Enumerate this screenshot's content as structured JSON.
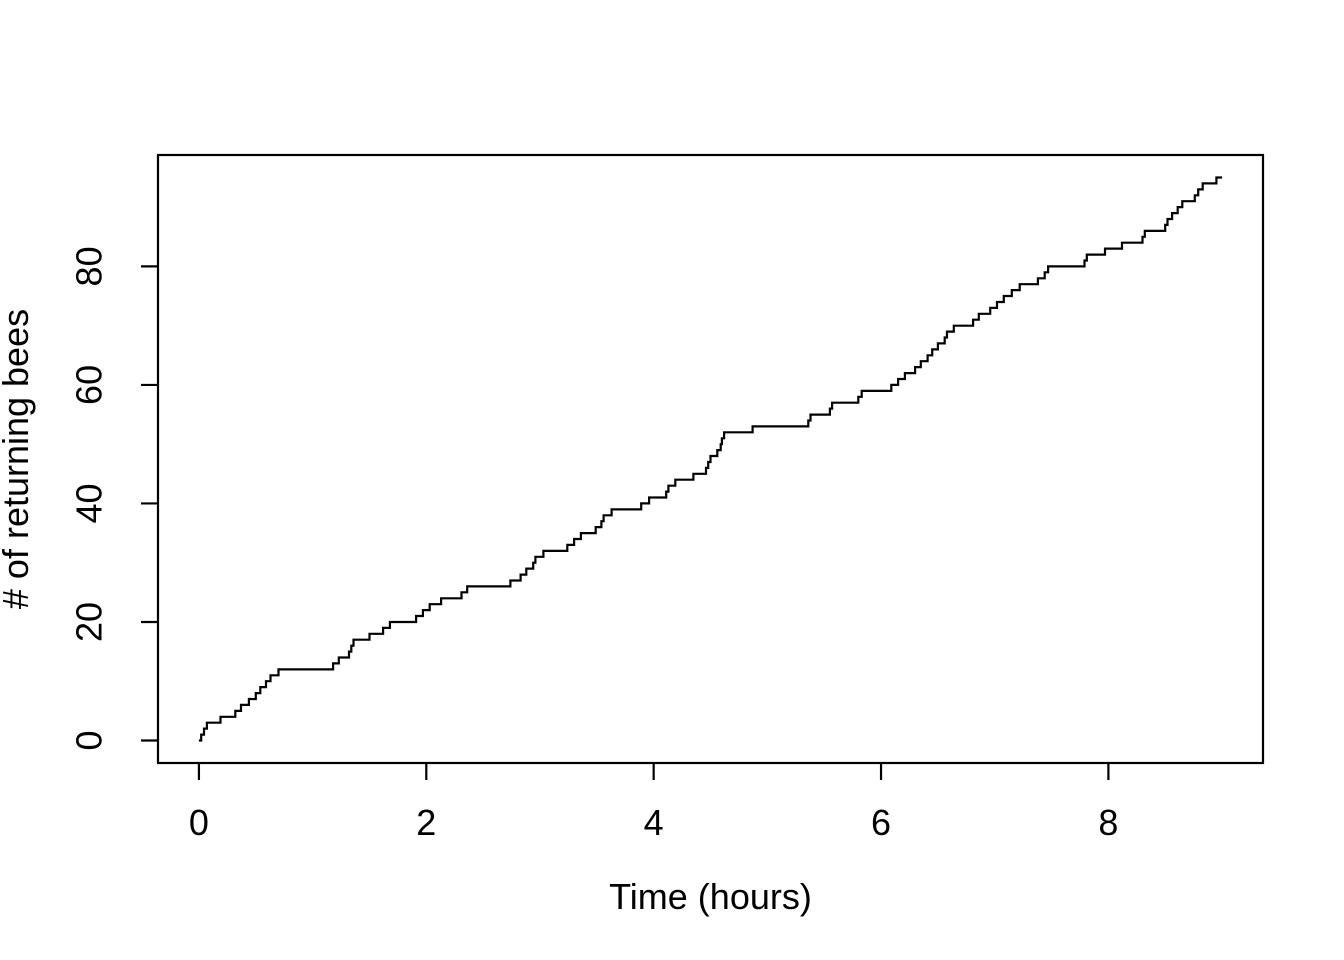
{
  "figure": {
    "background_color": "#ffffff",
    "foreground_color": "#000000"
  },
  "chart_data": {
    "type": "line",
    "subtype": "step-cumulative-count",
    "title": "",
    "xlabel": "Time (hours)",
    "ylabel": "# of returning bees",
    "x_tick_labels": [
      "0",
      "2",
      "4",
      "6",
      "8"
    ],
    "x_tick_values": [
      0,
      2,
      4,
      6,
      8
    ],
    "y_tick_labels": [
      "0",
      "20",
      "40",
      "60",
      "80"
    ],
    "y_tick_values": [
      0,
      20,
      40,
      60,
      80
    ],
    "xlim": [
      -0.36,
      9.36
    ],
    "ylim": [
      -3.8,
      98.8
    ],
    "grid": "off",
    "legend": "none",
    "line_color": "#000000",
    "start_point": [
      0,
      0
    ],
    "end_time": 9.0,
    "final_count": 95,
    "event_times_hours": [
      0.02,
      0.045,
      0.07,
      0.19,
      0.32,
      0.37,
      0.44,
      0.5,
      0.54,
      0.59,
      0.63,
      0.7,
      1.18,
      1.23,
      1.32,
      1.34,
      1.36,
      1.5,
      1.62,
      1.68,
      1.91,
      1.97,
      2.03,
      2.13,
      2.31,
      2.36,
      2.74,
      2.83,
      2.88,
      2.94,
      2.96,
      3.03,
      3.24,
      3.3,
      3.36,
      3.49,
      3.54,
      3.56,
      3.63,
      3.89,
      3.96,
      4.11,
      4.13,
      4.19,
      4.35,
      4.46,
      4.48,
      4.5,
      4.56,
      4.59,
      4.6,
      4.62,
      4.87,
      5.36,
      5.38,
      5.55,
      5.57,
      5.8,
      5.83,
      6.09,
      6.15,
      6.21,
      6.3,
      6.35,
      6.41,
      6.45,
      6.5,
      6.56,
      6.58,
      6.64,
      6.81,
      6.86,
      6.96,
      7.02,
      7.08,
      7.15,
      7.22,
      7.38,
      7.44,
      7.47,
      7.79,
      7.81,
      7.97,
      8.12,
      8.3,
      8.32,
      8.5,
      8.52,
      8.56,
      8.61,
      8.65,
      8.76,
      8.79,
      8.83,
      8.95
    ],
    "cumulative_counts_note": "y value after i-th event time equals i (1..95); curve starts at (0,0)"
  }
}
